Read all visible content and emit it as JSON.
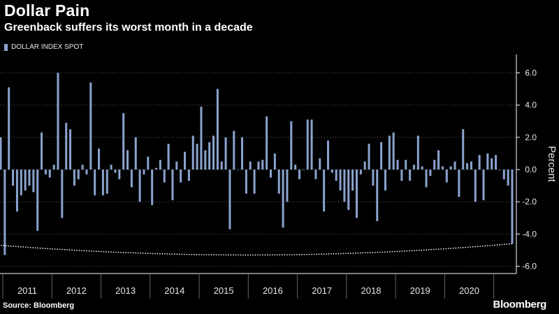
{
  "header": {
    "title": "Dollar Pain",
    "subtitle": "Greenback suffers its worst month in a decade"
  },
  "footer": {
    "source": "Source: Bloomberg",
    "brand": "Bloomberg"
  },
  "colors": {
    "background": "#000000",
    "bar": "#8ba3cf",
    "axis": "#ffffff",
    "grid": "#666666",
    "trend_line": "#ffffff"
  },
  "chart_data": {
    "type": "bar",
    "title": "Dollar Pain",
    "subtitle": "Greenback suffers its worst month in a decade",
    "ylabel": "Percent",
    "ylim": [
      -6.8,
      7.2
    ],
    "y_ticks": [
      "6.0",
      "4.0",
      "2.0",
      "0.0",
      "-2.0",
      "-4.0",
      "-6.0"
    ],
    "y_tick_values": [
      6,
      4,
      2,
      0,
      -2,
      -4,
      -6
    ],
    "y_axis_side": "right",
    "grid": "horizontal dotted",
    "legend": {
      "position": "top-left"
    },
    "years": [
      "2011",
      "2012",
      "2013",
      "2014",
      "2015",
      "2016",
      "2017",
      "2018",
      "2019",
      "2020"
    ],
    "series": [
      {
        "name": "DOLLAR INDEX SPOT",
        "values": [
          2.0,
          -5.3,
          5.1,
          -1.0,
          -2.6,
          -1.6,
          -1.3,
          -1.0,
          -1.4,
          -3.8,
          2.3,
          -0.3,
          -0.5,
          0.3,
          6.0,
          -3.0,
          2.9,
          2.5,
          -1.0,
          -0.6,
          0.3,
          -0.3,
          5.4,
          -1.6,
          1.3,
          -1.6,
          -1.5,
          0.3,
          -0.2,
          -0.6,
          3.5,
          1.2,
          -1.1,
          2.0,
          -2.0,
          -0.3,
          0.8,
          -2.2,
          0.1,
          0.6,
          -0.8,
          1.6,
          -1.9,
          0.5,
          -0.8,
          1.1,
          -0.7,
          2.1,
          1.6,
          3.9,
          1.2,
          1.7,
          2.1,
          5.0,
          0.5,
          2.0,
          -3.7,
          2.4,
          0.0,
          2.0,
          -1.5,
          0.5,
          -1.5,
          0.5,
          0.6,
          3.3,
          -0.5,
          1.0,
          -1.5,
          -3.6,
          -2.0,
          3.0,
          0.3,
          -0.6,
          0.0,
          3.1,
          3.1,
          -0.6,
          0.7,
          -2.6,
          1.8,
          -0.2,
          -0.7,
          -1.3,
          -2.0,
          -2.5,
          -1.3,
          -3.0,
          -0.3,
          0.5,
          1.6,
          -1.0,
          -3.2,
          1.7,
          -1.3,
          2.1,
          2.3,
          0.6,
          -0.7,
          0.6,
          -0.7,
          0.3,
          2.1,
          0.2,
          -1.1,
          -0.4,
          0.6,
          1.2,
          0.2,
          -0.8,
          0.2,
          0.5,
          -1.7,
          2.5,
          0.4,
          0.5,
          -2.0,
          0.9,
          -1.9,
          1.0,
          0.7,
          0.9,
          0.0,
          -0.6,
          -1.0,
          -4.6
        ]
      }
    ],
    "trend_line": {
      "description": "dotted arc beneath bars",
      "start": {
        "index": 0,
        "value": -4.7
      },
      "mid": {
        "index": 63,
        "value": -5.3
      },
      "end": {
        "index": 125,
        "value": -4.6
      }
    }
  }
}
